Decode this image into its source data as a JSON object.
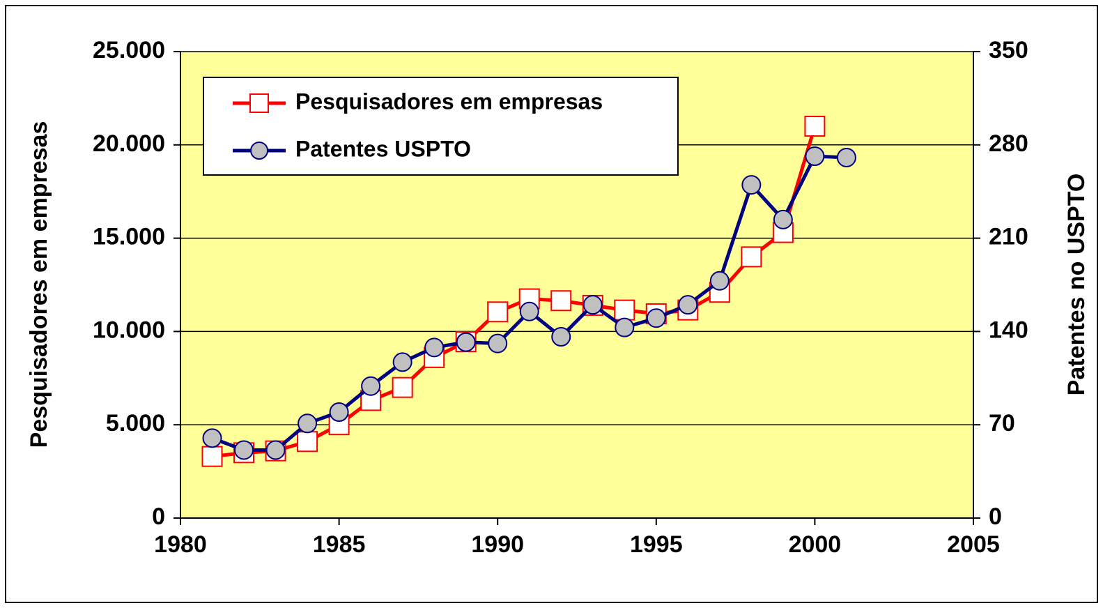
{
  "chart_data": {
    "type": "line",
    "ylabel": "Pesquisadores em empresas",
    "y2label": "Patentes no USPTO",
    "x": [
      1981,
      1982,
      1983,
      1984,
      1985,
      1986,
      1987,
      1988,
      1989,
      1990,
      1991,
      1992,
      1993,
      1994,
      1995,
      1996,
      1997,
      1998,
      1999,
      2000,
      2001
    ],
    "series": [
      {
        "name": "Pesquisadores em empresas",
        "color": "#ff0000",
        "axis": "y",
        "values": [
          3300,
          3500,
          3600,
          4100,
          5000,
          6300,
          7000,
          8600,
          9450,
          11050,
          11750,
          11650,
          11400,
          11150,
          10950,
          11150,
          12100,
          14000,
          15300,
          21000,
          null
        ]
      },
      {
        "name": "Patentes USPTO",
        "color": "#000080",
        "axis": "y2",
        "values": [
          60,
          51,
          51,
          71,
          79.5,
          99,
          117,
          128,
          132,
          131,
          155,
          136,
          160,
          143,
          150,
          160,
          178,
          250,
          224,
          271.5,
          270.5
        ]
      }
    ],
    "xlim": [
      1980,
      2005
    ],
    "xticks": [
      1980,
      1985,
      1990,
      1995,
      2000,
      2005
    ],
    "ylim": [
      0,
      25000
    ],
    "yticks": [
      0,
      {
        "value": 5000,
        "label": "5.000"
      },
      {
        "value": 10000,
        "label": "10.000"
      },
      {
        "value": 15000,
        "label": "15.000"
      },
      {
        "value": 20000,
        "label": "20.000"
      },
      {
        "value": 25000,
        "label": "25.000"
      }
    ],
    "y2lim": [
      0,
      350
    ],
    "y2ticks": [
      0,
      70,
      140,
      210,
      280,
      350
    ],
    "grid": true,
    "legend": "upper left",
    "background": "#ffff99"
  }
}
